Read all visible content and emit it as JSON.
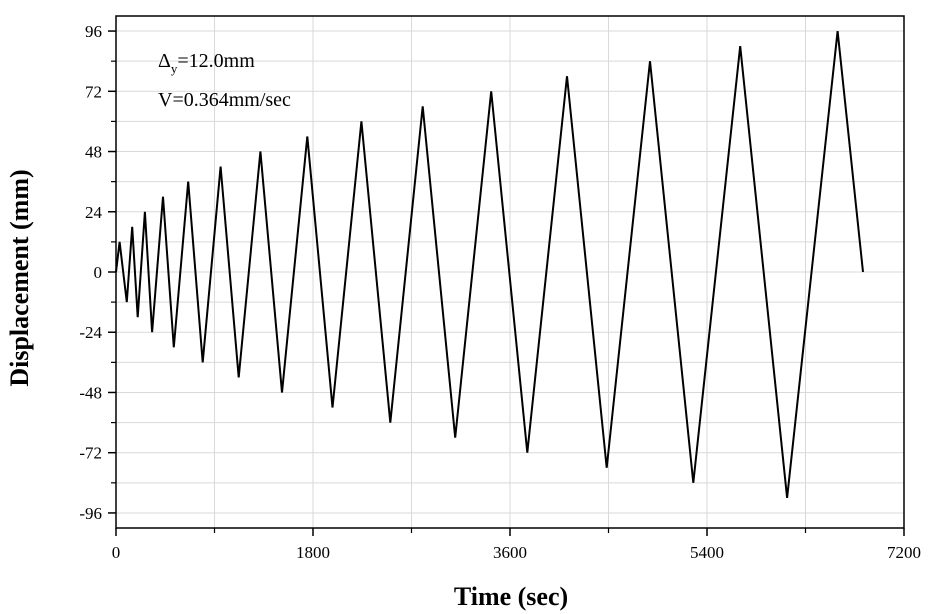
{
  "chart_data": {
    "type": "line",
    "xlabel": "Time (sec)",
    "ylabel": "Displacement (mm)",
    "xlim": [
      0,
      7200
    ],
    "ylim": [
      -102,
      102
    ],
    "xticks": [
      0,
      1800,
      3600,
      5400,
      7200
    ],
    "xtick_labels": [
      "0",
      "1800",
      "3600",
      "5400",
      "7200"
    ],
    "yticks": [
      96,
      72,
      48,
      24,
      0,
      -24,
      -48,
      -72,
      -96
    ],
    "ytick_labels": [
      "96",
      "72",
      "48",
      "24",
      "0",
      "-24",
      "-48",
      "-72",
      "-96"
    ],
    "grid": true,
    "legend": "none",
    "annotations": {
      "delta_symbol": "Δ",
      "delta_sub": "y",
      "delta_value": "=12.0mm",
      "velocity": "V=0.364mm/sec"
    },
    "series": [
      {
        "color": "#000000",
        "x": [
          0,
          33,
          99,
          148,
          198,
          264,
          330,
          429,
          528,
          660,
          792,
          956,
          1121,
          1319,
          1517,
          1748,
          1978,
          2242,
          2506,
          2802,
          3099,
          3428,
          3758,
          4121,
          4484,
          4879,
          5275,
          5703,
          6132,
          6593,
          6825
        ],
        "y": [
          0,
          12,
          -12,
          18,
          -18,
          24,
          -24,
          30,
          -30,
          36,
          -36,
          42,
          -42,
          48,
          -48,
          54,
          -54,
          60,
          -60,
          66,
          -66,
          72,
          -72,
          78,
          -78,
          84,
          -84,
          90,
          -90,
          96,
          0
        ]
      }
    ]
  }
}
